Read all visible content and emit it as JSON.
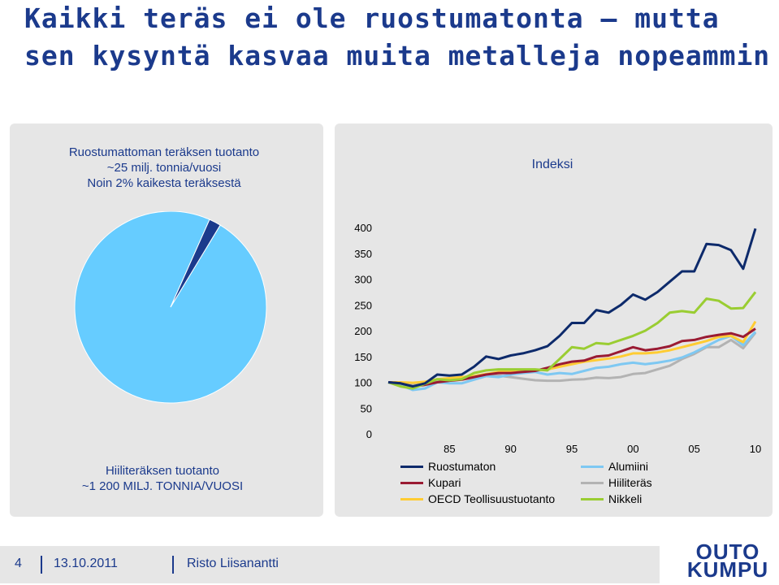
{
  "slide": {
    "title": "Kaikki teräs ei ole ruostumatonta – mutta sen kysyntä kasvaa muita metalleja nopeammin"
  },
  "pie": {
    "caption_top_line1": "Ruostumattoman teräksen tuotanto",
    "caption_top_line2": "~25 milj. tonnia/vuosi",
    "caption_top_line3": "Noin  2% kaikesta teräksestä",
    "caption_bottom_line1": "Hiiliteräksen tuotanto",
    "caption_bottom_line2": "~1 200 MILJ. TONNIA/VUOSI",
    "colors": {
      "main": "#66ccff",
      "slice": "#1b3a8c"
    }
  },
  "footer": {
    "page_number": "4",
    "date": "13.10.2011",
    "author": "Risto Liisanantti",
    "logo_line1": "OUTO",
    "logo_line2": "KUMPU"
  },
  "chart_data": [
    {
      "type": "pie",
      "values": [
        98,
        2
      ],
      "colors": [
        "#66ccff",
        "#1b3a8c"
      ]
    },
    {
      "type": "line",
      "title": "Indeksi",
      "x": [
        1980,
        1981,
        1982,
        1983,
        1984,
        1985,
        1986,
        1987,
        1988,
        1989,
        1990,
        1991,
        1992,
        1993,
        1994,
        1995,
        1996,
        1997,
        1998,
        1999,
        2000,
        2001,
        2002,
        2003,
        2004,
        2005,
        2006,
        2007,
        2008,
        2009,
        2010
      ],
      "x_tick_labels": [
        "85",
        "90",
        "95",
        "00",
        "05",
        "10"
      ],
      "x_tick_values": [
        1985,
        1990,
        1995,
        2000,
        2005,
        2010
      ],
      "ylim": [
        0,
        400
      ],
      "y_ticks": [
        0,
        50,
        100,
        150,
        200,
        250,
        300,
        350,
        400
      ],
      "legend_position": "bottom",
      "series": [
        {
          "name": "Ruostumaton",
          "color": "#0d2a6b",
          "values": [
            100,
            98,
            92,
            98,
            115,
            113,
            115,
            130,
            150,
            145,
            152,
            156,
            162,
            170,
            190,
            215,
            215,
            240,
            235,
            250,
            270,
            260,
            275,
            295,
            315,
            315,
            368,
            366,
            356,
            320,
            398
          ]
        },
        {
          "name": "Alumiini",
          "color": "#7ec8f2",
          "values": [
            100,
            95,
            85,
            88,
            100,
            98,
            98,
            105,
            112,
            110,
            115,
            118,
            120,
            115,
            118,
            116,
            122,
            128,
            130,
            135,
            138,
            135,
            138,
            142,
            148,
            158,
            170,
            182,
            190,
            172,
            198
          ]
        },
        {
          "name": "Kupari",
          "color": "#9a1b33",
          "values": [
            100,
            98,
            92,
            95,
            100,
            103,
            105,
            110,
            115,
            118,
            118,
            120,
            122,
            128,
            135,
            140,
            142,
            150,
            152,
            160,
            168,
            162,
            165,
            170,
            180,
            182,
            188,
            192,
            195,
            188,
            204
          ]
        },
        {
          "name": "Hiiliteräs",
          "color": "#b3b3b3",
          "values": [
            100,
            96,
            96,
            98,
            104,
            104,
            106,
            108,
            112,
            113,
            110,
            107,
            104,
            103,
            103,
            105,
            106,
            109,
            108,
            110,
            116,
            118,
            125,
            132,
            145,
            155,
            168,
            168,
            182,
            166,
            196
          ]
        },
        {
          "name": "OECD Teollisuustuotanto",
          "color": "#ffcc33",
          "values": [
            100,
            100,
            99,
            101,
            106,
            108,
            110,
            112,
            116,
            120,
            122,
            122,
            123,
            125,
            130,
            135,
            140,
            143,
            146,
            150,
            156,
            156,
            158,
            162,
            168,
            174,
            180,
            188,
            190,
            178,
            218
          ]
        },
        {
          "name": "Nikkeli",
          "color": "#9acd32",
          "values": [
            100,
            92,
            88,
            97,
            106,
            104,
            106,
            118,
            123,
            125,
            125,
            125,
            125,
            123,
            145,
            168,
            165,
            176,
            174,
            182,
            190,
            200,
            215,
            235,
            238,
            235,
            262,
            258,
            243,
            244,
            275
          ]
        }
      ]
    }
  ]
}
